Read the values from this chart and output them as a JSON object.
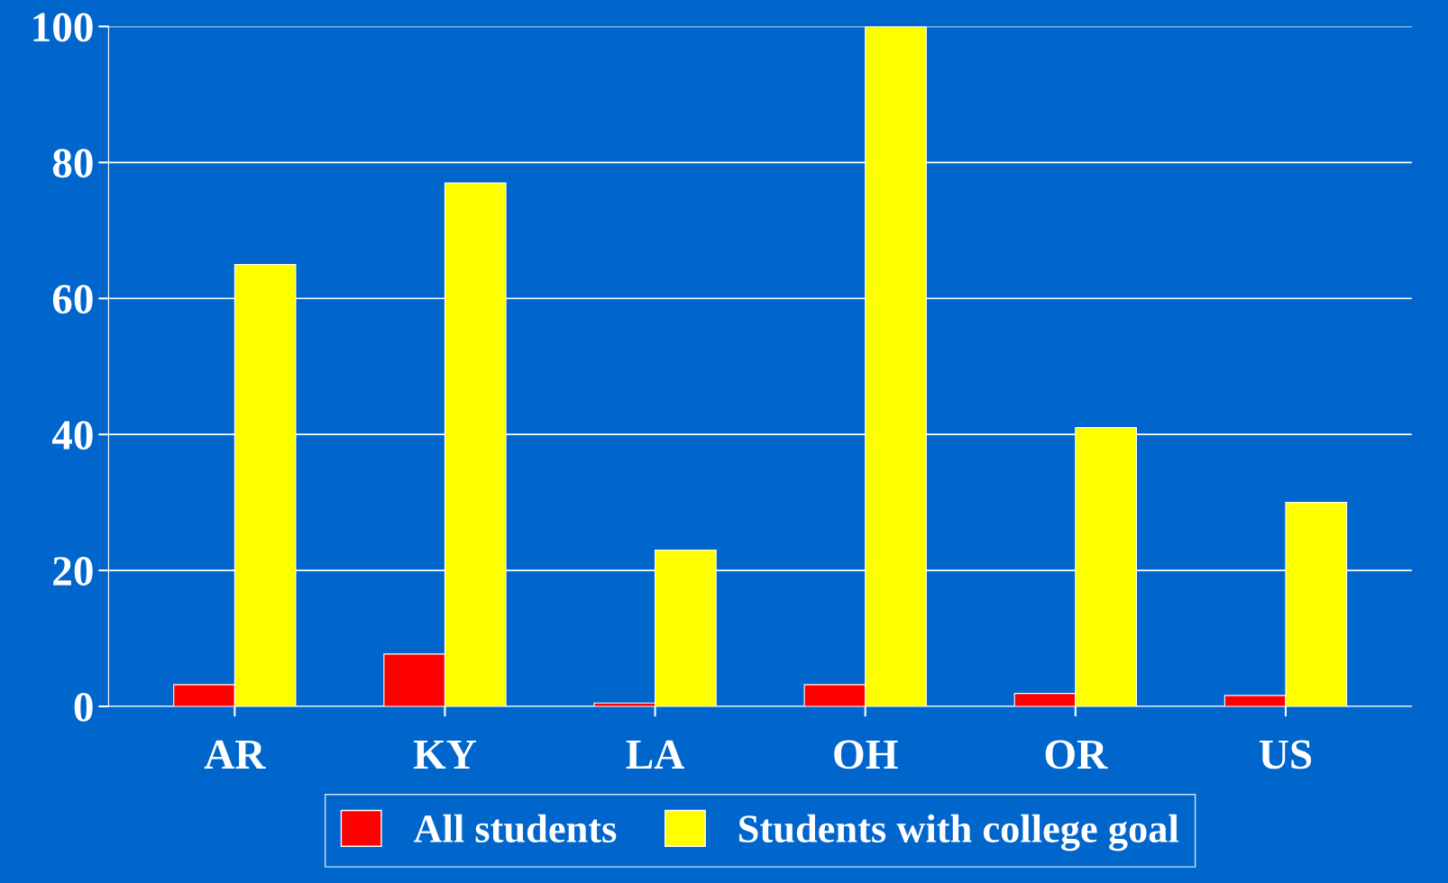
{
  "chart_data": {
    "type": "bar",
    "categories": [
      "AR",
      "KY",
      "LA",
      "OH",
      "OR",
      "US"
    ],
    "series": [
      {
        "name": "All students",
        "color": "#ff0000",
        "values": [
          3.2,
          7.7,
          0.5,
          3.2,
          1.9,
          1.6
        ]
      },
      {
        "name": "Students with college goal",
        "color": "#ffff00",
        "values": [
          65,
          77,
          23,
          100,
          41,
          30
        ]
      }
    ],
    "ylim": [
      0,
      100
    ],
    "yticks": [
      0,
      20,
      40,
      60,
      80,
      100
    ],
    "grid": "y",
    "legend": "bottom"
  }
}
